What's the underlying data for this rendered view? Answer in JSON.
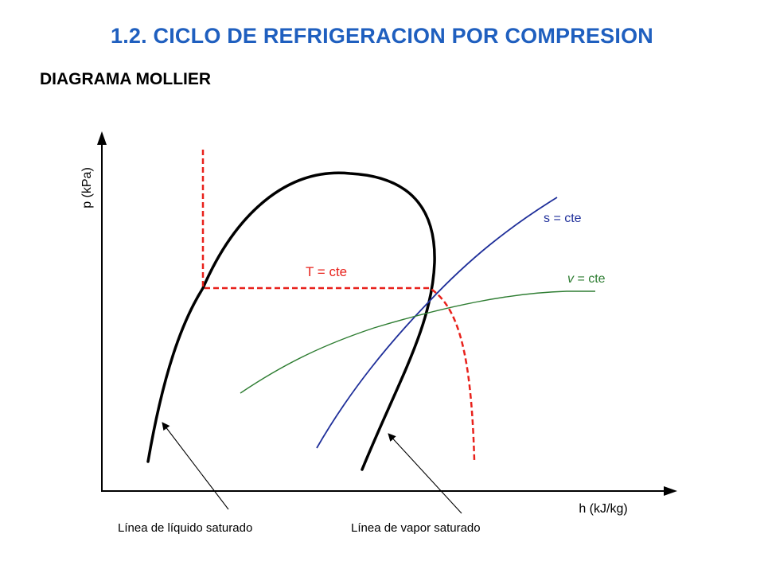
{
  "header": {
    "title": "1.2. CICLO DE REFRIGERACION POR COMPRESION",
    "subtitle": "DIAGRAMA MOLLIER"
  },
  "diagram": {
    "y_axis_label": "p (kPa)",
    "x_axis_label": "h (kJ/kg)",
    "labels": {
      "isotherm": "T = cte",
      "isentrope": "s = cte",
      "isochore_var": "v",
      "isochore_rest": " = cte",
      "liquid_line": "Línea de líquido saturado",
      "vapor_line": "Línea de vapor saturado"
    }
  },
  "colors": {
    "title": "#1f5fbf",
    "text": "#000000",
    "axis": "#000000",
    "saturation_curve": "#000000",
    "isotherm": "#e8211b",
    "isentrope": "#1f2f9a",
    "isochore": "#2e7d32"
  }
}
